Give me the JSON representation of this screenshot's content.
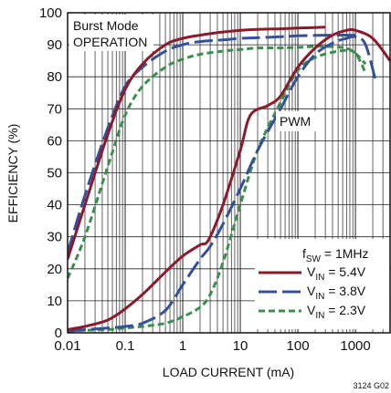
{
  "chart_data": {
    "type": "line",
    "title": "",
    "xlabel": "LOAD CURRENT (mA)",
    "ylabel": "EFFICIENCY (%)",
    "x_scale": "log",
    "xlim": [
      0.01,
      4000
    ],
    "ylim": [
      0,
      100
    ],
    "x_ticks": [
      0.01,
      0.1,
      1,
      10,
      100,
      1000
    ],
    "x_tick_labels": [
      "0.01",
      "0.1",
      "1",
      "10",
      "100",
      "1000"
    ],
    "y_ticks": [
      0,
      10,
      20,
      30,
      40,
      50,
      60,
      70,
      80,
      90,
      100
    ],
    "y_tick_labels": [
      "0",
      "10",
      "20",
      "30",
      "40",
      "50",
      "60",
      "70",
      "80",
      "90",
      "100"
    ],
    "grid": true,
    "legend_position": "bottom-right",
    "legend_title": {
      "base": "f",
      "sub": "SW",
      "rest": " = 1MHz"
    },
    "annotations": [
      {
        "name": "burst-line1",
        "text": "Burst Mode"
      },
      {
        "name": "burst-line2",
        "text": "OPERATION"
      },
      {
        "name": "pwm",
        "text": "PWM"
      }
    ],
    "figure_code": "3124 G02",
    "series": [
      {
        "name": "VIN = 5.4V",
        "label": {
          "base": "V",
          "sub": "IN",
          "rest": " = 5.4V"
        },
        "color": "#8b1a2b",
        "dash": "solid",
        "mode": "Burst Mode",
        "x": [
          0.01,
          0.02,
          0.05,
          0.1,
          0.2,
          0.5,
          1,
          2,
          5,
          10,
          20,
          50,
          100,
          300
        ],
        "y": [
          23,
          40,
          62,
          76,
          84,
          90,
          92,
          93,
          94,
          94.5,
          94.8,
          95,
          95.2,
          95.5
        ]
      },
      {
        "name": "VIN = 3.8V",
        "label": {
          "base": "V",
          "sub": "IN",
          "rest": " = 3.8V"
        },
        "color": "#33509c",
        "dash": "long-dash",
        "mode": "Burst Mode",
        "x": [
          0.01,
          0.02,
          0.05,
          0.1,
          0.2,
          0.5,
          1,
          2,
          5,
          10,
          20,
          50,
          100,
          300,
          1000
        ],
        "y": [
          25,
          43,
          64,
          77,
          83,
          88,
          90,
          91,
          91.5,
          92,
          92.2,
          92.5,
          92.8,
          93,
          93
        ]
      },
      {
        "name": "VIN = 2.3V",
        "label": {
          "base": "V",
          "sub": "IN",
          "rest": " = 2.3V"
        },
        "color": "#3a8f4b",
        "dash": "short-dash",
        "mode": "Burst Mode",
        "x": [
          0.01,
          0.02,
          0.05,
          0.1,
          0.2,
          0.5,
          1,
          2,
          5,
          10,
          20,
          50,
          100,
          300,
          800,
          1500
        ],
        "y": [
          17,
          30,
          52,
          68,
          77,
          83,
          85.5,
          87,
          88,
          88.5,
          89,
          89,
          89.2,
          89.5,
          88.5,
          84
        ]
      },
      {
        "name": "VIN = 5.4V PWM",
        "color": "#8b1a2b",
        "dash": "solid",
        "mode": "PWM",
        "x": [
          0.01,
          0.02,
          0.05,
          0.1,
          0.2,
          0.5,
          1,
          2,
          2.8,
          5,
          10,
          15,
          30,
          50,
          100,
          200,
          400,
          700,
          1000,
          2000,
          4000
        ],
        "y": [
          1,
          2,
          4,
          7.5,
          12,
          19,
          24,
          27.5,
          29,
          40,
          57,
          68,
          71,
          74,
          83,
          89,
          93,
          94.5,
          94.5,
          92,
          85
        ]
      },
      {
        "name": "VIN = 3.8V PWM",
        "color": "#33509c",
        "dash": "long-dash",
        "mode": "PWM",
        "x": [
          0.01,
          0.02,
          0.05,
          0.1,
          0.2,
          0.5,
          1,
          2,
          3,
          5,
          10,
          20,
          50,
          100,
          200,
          400,
          700,
          1000,
          1500,
          2300
        ],
        "y": [
          0.5,
          1,
          1.5,
          2,
          3,
          7,
          15,
          23,
          27,
          34,
          45,
          57,
          70,
          80,
          87,
          90.5,
          92,
          92.5,
          90,
          78
        ]
      },
      {
        "name": "VIN = 2.3V PWM",
        "color": "#3a8f4b",
        "dash": "short-dash",
        "mode": "PWM",
        "x": [
          0.01,
          0.02,
          0.05,
          0.1,
          0.2,
          0.5,
          1,
          2,
          3,
          5,
          10,
          20,
          50,
          100,
          200,
          500,
          900,
          1200,
          1500
        ],
        "y": [
          0.5,
          0.8,
          1,
          1.5,
          2,
          3,
          5,
          8,
          12,
          22,
          40,
          57,
          72,
          82,
          86,
          88,
          88,
          85,
          81
        ]
      }
    ]
  }
}
